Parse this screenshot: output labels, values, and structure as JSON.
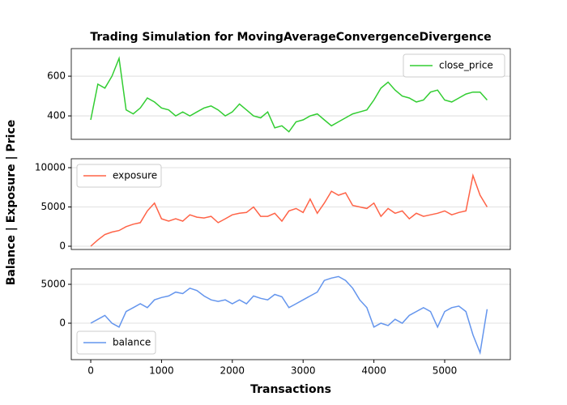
{
  "chart_data": [
    {
      "type": "line",
      "title": "Trading Simulation for MovingAverageConvergenceDivergence",
      "x": [
        0,
        100,
        200,
        300,
        400,
        500,
        600,
        700,
        800,
        900,
        1000,
        1100,
        1200,
        1300,
        1400,
        1500,
        1600,
        1700,
        1800,
        1900,
        2000,
        2100,
        2200,
        2300,
        2400,
        2500,
        2600,
        2700,
        2800,
        2900,
        3000,
        3100,
        3200,
        3300,
        3400,
        3500,
        3600,
        3700,
        3800,
        3900,
        4000,
        4100,
        4200,
        4300,
        4400,
        4500,
        4600,
        4700,
        4800,
        4900,
        5000,
        5100,
        5200,
        5300,
        5400,
        5500,
        5600
      ],
      "series": [
        {
          "name": "close_price",
          "color": "#32cd32",
          "values": [
            380,
            560,
            540,
            600,
            690,
            430,
            410,
            440,
            490,
            470,
            440,
            430,
            400,
            420,
            400,
            420,
            440,
            450,
            430,
            400,
            420,
            460,
            430,
            400,
            390,
            420,
            340,
            350,
            320,
            370,
            380,
            400,
            410,
            380,
            350,
            370,
            390,
            410,
            420,
            430,
            480,
            540,
            570,
            530,
            500,
            490,
            470,
            480,
            520,
            530,
            480,
            470,
            490,
            510,
            520,
            520,
            480
          ]
        }
      ],
      "xlim": [
        -275,
        5927
      ],
      "ylim": [
        282,
        739
      ],
      "yticks": [
        400,
        600
      ],
      "grid": true,
      "legend": "upper right"
    },
    {
      "type": "line",
      "y_label": "Balance | Exposure | Price",
      "x": [
        0,
        100,
        200,
        300,
        400,
        500,
        600,
        700,
        800,
        900,
        1000,
        1100,
        1200,
        1300,
        1400,
        1500,
        1600,
        1700,
        1800,
        1900,
        2000,
        2100,
        2200,
        2300,
        2400,
        2500,
        2600,
        2700,
        2800,
        2900,
        3000,
        3100,
        3200,
        3300,
        3400,
        3500,
        3600,
        3700,
        3800,
        3900,
        4000,
        4100,
        4200,
        4300,
        4400,
        4500,
        4600,
        4700,
        4800,
        4900,
        5000,
        5100,
        5200,
        5300,
        5400,
        5500,
        5600
      ],
      "series": [
        {
          "name": "exposure",
          "color": "#ff6347",
          "values": [
            0,
            800,
            1500,
            1800,
            2000,
            2500,
            2800,
            3000,
            4500,
            5500,
            3500,
            3200,
            3500,
            3200,
            4000,
            3700,
            3600,
            3800,
            3000,
            3500,
            4000,
            4200,
            4300,
            5000,
            3800,
            3800,
            4200,
            3200,
            4500,
            4800,
            4300,
            6000,
            4200,
            5500,
            7000,
            6500,
            6800,
            5200,
            5000,
            4800,
            5500,
            3800,
            4800,
            4200,
            4500,
            3500,
            4200,
            3800,
            4000,
            4200,
            4500,
            4000,
            4300,
            4500,
            9000,
            6500,
            5000
          ]
        }
      ],
      "xlim": [
        -275,
        5927
      ],
      "ylim": [
        -412,
        11134
      ],
      "yticks": [
        0,
        5000,
        10000
      ],
      "grid": true,
      "legend": "upper left"
    },
    {
      "type": "line",
      "x_label": "Transactions",
      "x": [
        0,
        100,
        200,
        300,
        400,
        500,
        600,
        700,
        800,
        900,
        1000,
        1100,
        1200,
        1300,
        1400,
        1500,
        1600,
        1700,
        1800,
        1900,
        2000,
        2100,
        2200,
        2300,
        2400,
        2500,
        2600,
        2700,
        2800,
        2900,
        3000,
        3100,
        3200,
        3300,
        3400,
        3500,
        3600,
        3700,
        3800,
        3900,
        4000,
        4100,
        4200,
        4300,
        4400,
        4500,
        4600,
        4700,
        4800,
        4900,
        5000,
        5100,
        5200,
        5300,
        5400,
        5500,
        5600
      ],
      "series": [
        {
          "name": "balance",
          "color": "#6495ed",
          "values": [
            0,
            500,
            1000,
            0,
            -500,
            1500,
            2000,
            2500,
            2000,
            3000,
            3300,
            3500,
            4000,
            3800,
            4500,
            4200,
            3500,
            3000,
            2800,
            3000,
            2500,
            3000,
            2500,
            3500,
            3200,
            3000,
            3700,
            3400,
            2000,
            2500,
            3000,
            3500,
            4000,
            5500,
            5800,
            6000,
            5500,
            4500,
            3000,
            2000,
            -500,
            0,
            -300,
            500,
            0,
            1000,
            1500,
            2000,
            1500,
            -500,
            1500,
            2000,
            2200,
            1500,
            -1500,
            -3800,
            1800
          ]
        }
      ],
      "xlim": [
        -275,
        5927
      ],
      "ylim": [
        -4688,
        6979
      ],
      "yticks": [
        0,
        5000
      ],
      "xticks": [
        0,
        1000,
        2000,
        3000,
        4000,
        5000
      ],
      "grid": true,
      "legend": "lower left"
    }
  ]
}
